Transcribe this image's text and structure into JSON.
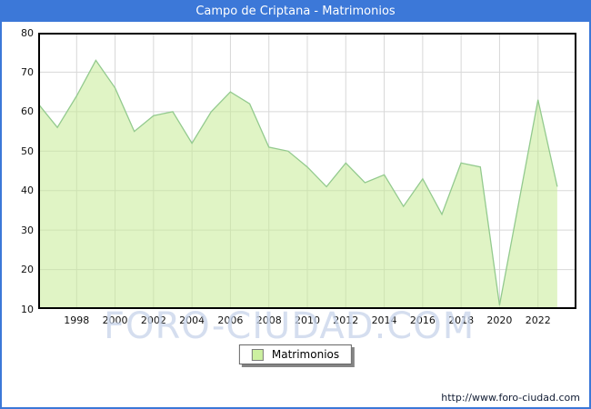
{
  "window": {
    "title": "Campo de Criptana - Matrimonios"
  },
  "chart_data": {
    "type": "area",
    "title": "Campo de Criptana - Matrimonios",
    "x": [
      1996,
      1997,
      1998,
      1999,
      2000,
      2001,
      2002,
      2003,
      2004,
      2005,
      2006,
      2007,
      2008,
      2009,
      2010,
      2011,
      2012,
      2013,
      2014,
      2015,
      2016,
      2017,
      2018,
      2019,
      2020,
      2021,
      2022,
      2023
    ],
    "series": [
      {
        "name": "Matrimonios",
        "values": [
          62,
          56,
          64,
          73,
          66,
          55,
          59,
          60,
          52,
          60,
          65,
          62,
          51,
          50,
          46,
          41,
          47,
          42,
          44,
          36,
          43,
          34,
          47,
          46,
          11,
          37,
          63,
          41
        ]
      }
    ],
    "xlim": [
      1996,
      2024
    ],
    "ylim": [
      10,
      80
    ],
    "yticks": [
      10,
      20,
      30,
      40,
      50,
      60,
      70,
      80
    ],
    "xticks": [
      1998,
      2000,
      2002,
      2004,
      2006,
      2008,
      2010,
      2012,
      2014,
      2016,
      2018,
      2020,
      2022
    ],
    "grid": true,
    "legend_position": "bottom-center",
    "colors": {
      "fill": "rgba(198,235,149,0.55)",
      "line": "#93ca8e",
      "grid": "#d8d8d8",
      "plot_border": "#000000",
      "titlebar": "#3c78d8"
    }
  },
  "legend": {
    "label": "Matrimonios",
    "swatch_color": "#ccf0a0"
  },
  "watermark": {
    "text": "FORO-CIUDAD.COM"
  },
  "footer": {
    "url": "http://www.foro-ciudad.com"
  }
}
